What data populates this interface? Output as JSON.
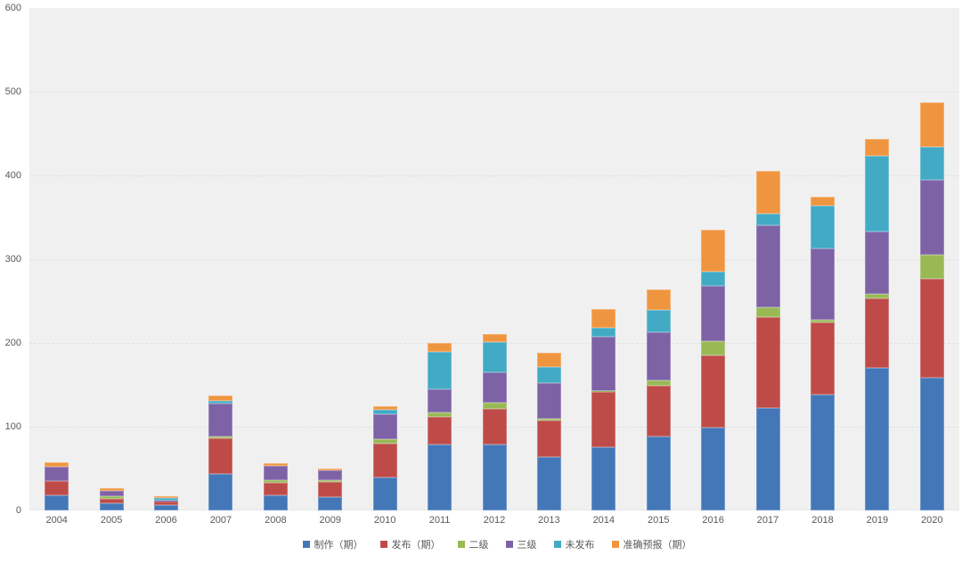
{
  "chart_data": {
    "type": "bar",
    "stacked": true,
    "title": "",
    "xlabel": "",
    "ylabel": "",
    "categories": [
      "2004",
      "2005",
      "2006",
      "2007",
      "2008",
      "2009",
      "2010",
      "2011",
      "2012",
      "2013",
      "2014",
      "2015",
      "2016",
      "2017",
      "2018",
      "2019",
      "2020"
    ],
    "series": [
      {
        "name": "制作（期）",
        "color": "#4377B8",
        "values": [
          18,
          8,
          6,
          44,
          18,
          16,
          39,
          79,
          79,
          64,
          76,
          88,
          99,
          122,
          138,
          170,
          158
        ]
      },
      {
        "name": "发布（期）",
        "color": "#BE4B48",
        "values": [
          17,
          6,
          5,
          42,
          15,
          18,
          41,
          33,
          42,
          43,
          65,
          61,
          86,
          109,
          87,
          83,
          119
        ]
      },
      {
        "name": "二级",
        "color": "#98B954",
        "values": [
          0,
          3,
          0,
          2,
          3,
          2,
          5,
          5,
          8,
          3,
          2,
          6,
          17,
          12,
          3,
          6,
          28
        ]
      },
      {
        "name": "三级",
        "color": "#7D62A6",
        "values": [
          17,
          6,
          1,
          40,
          17,
          12,
          30,
          28,
          36,
          42,
          64,
          58,
          66,
          97,
          85,
          74,
          90
        ]
      },
      {
        "name": "未发布",
        "color": "#42AAC5",
        "values": [
          0,
          0,
          3,
          3,
          0,
          0,
          5,
          44,
          36,
          19,
          11,
          26,
          17,
          14,
          51,
          90,
          39
        ]
      },
      {
        "name": "准确预报（期）",
        "color": "#F0953F",
        "values": [
          5,
          4,
          2,
          6,
          3,
          2,
          5,
          11,
          10,
          17,
          23,
          25,
          50,
          51,
          11,
          21,
          53
        ]
      }
    ],
    "ylim": [
      0,
      600
    ],
    "y_ticks": [
      0,
      100,
      200,
      300,
      400,
      500,
      600
    ],
    "grid": true,
    "legend_position": "bottom",
    "plot_background": "#f0f0f0",
    "page_background": "#ffffff",
    "tick_label_color": "#595959"
  }
}
